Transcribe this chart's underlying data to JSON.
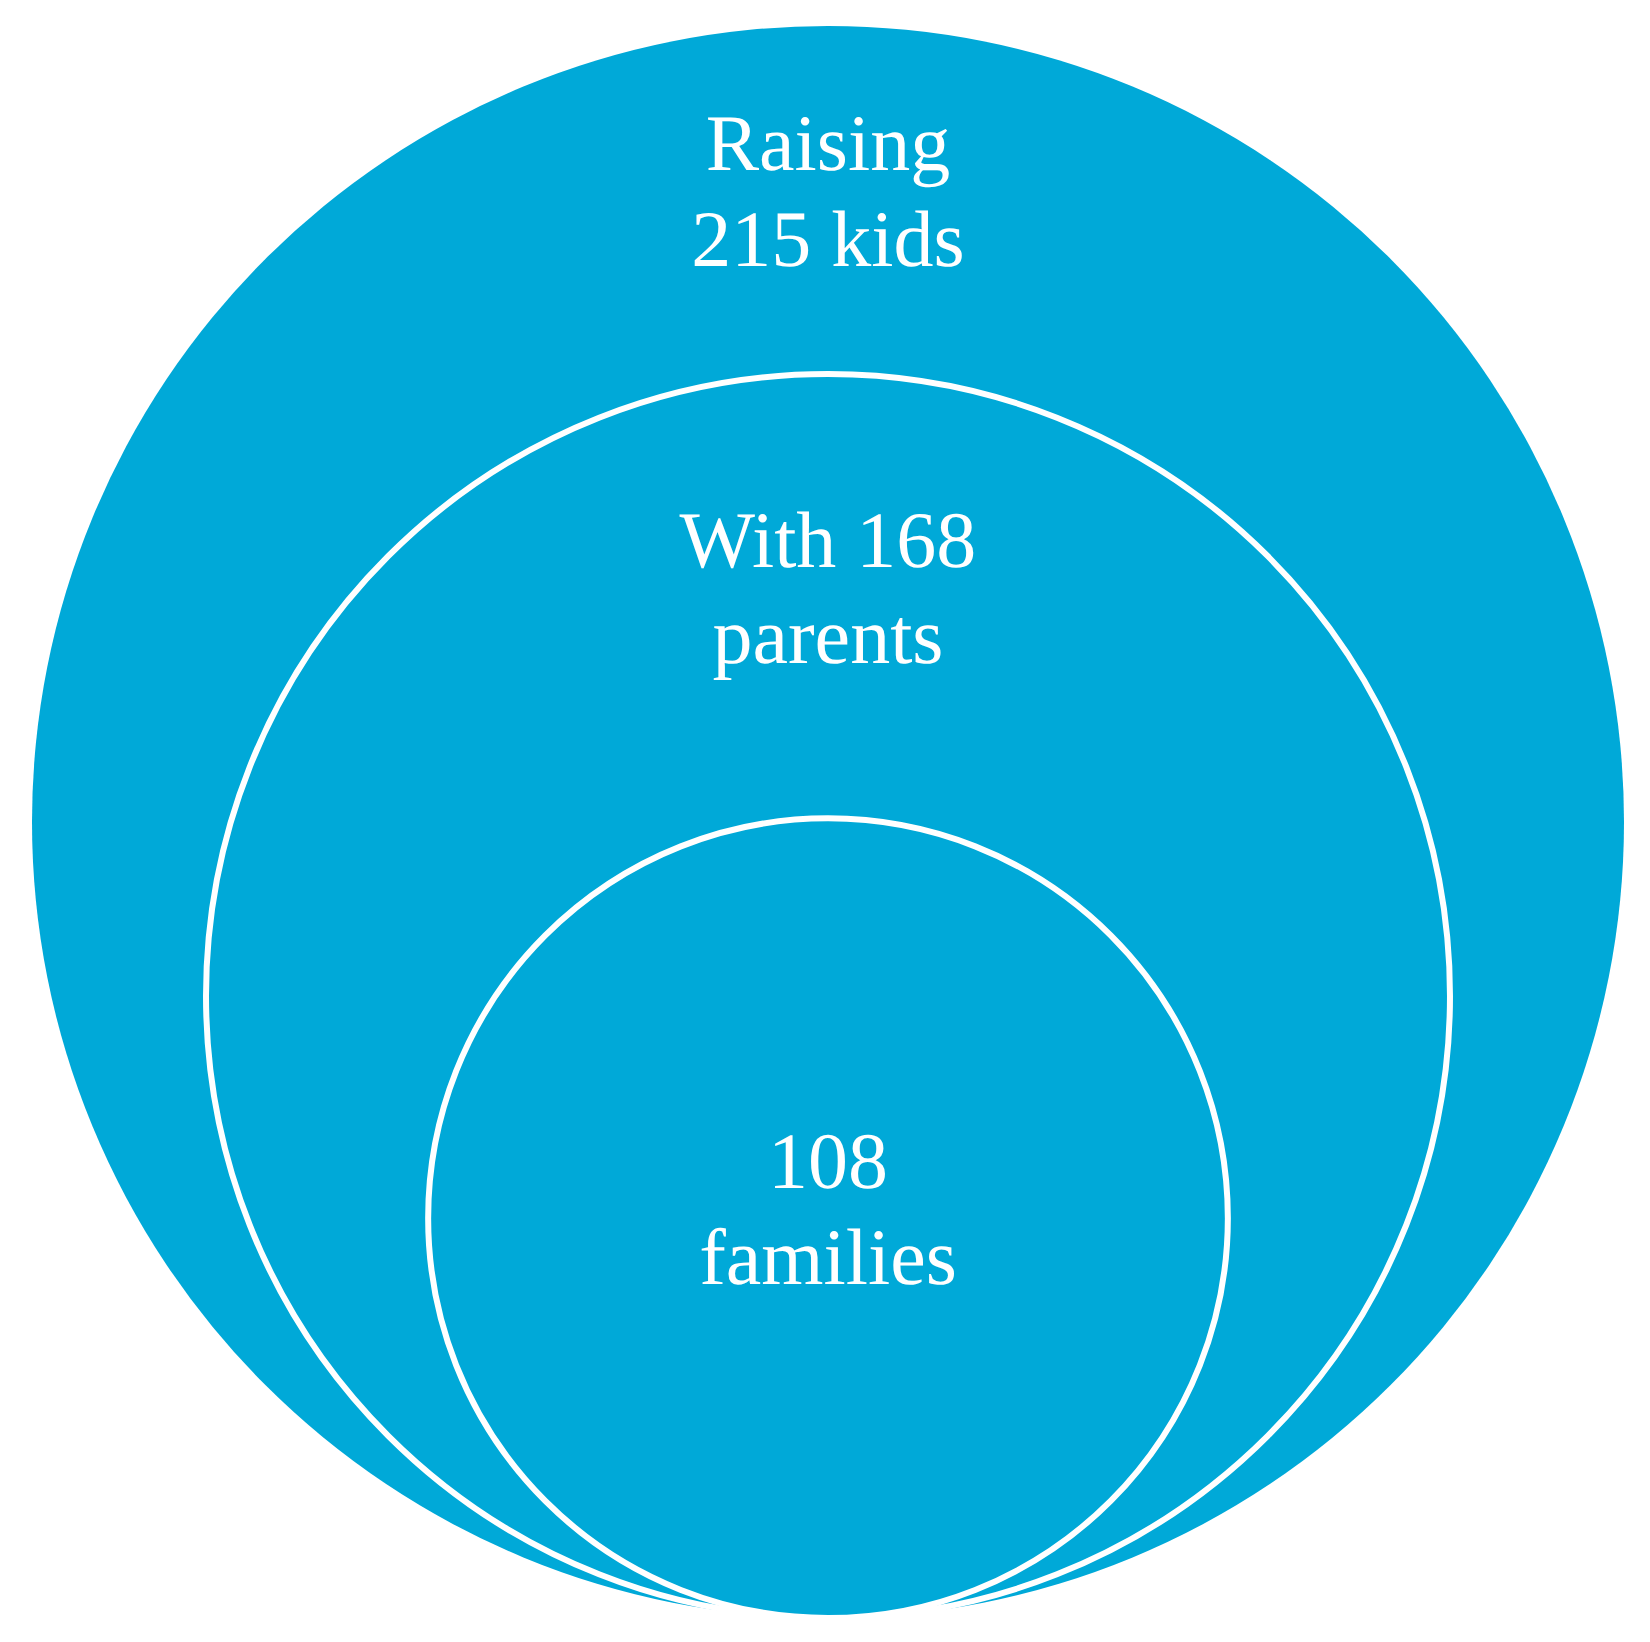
{
  "chart_data": {
    "type": "other",
    "values": [
      215,
      168,
      108
    ],
    "value_labels": [
      "Raising\n215 kids",
      "With 168\nparents",
      "108\nfamilies"
    ],
    "color": "#00a9d8"
  }
}
